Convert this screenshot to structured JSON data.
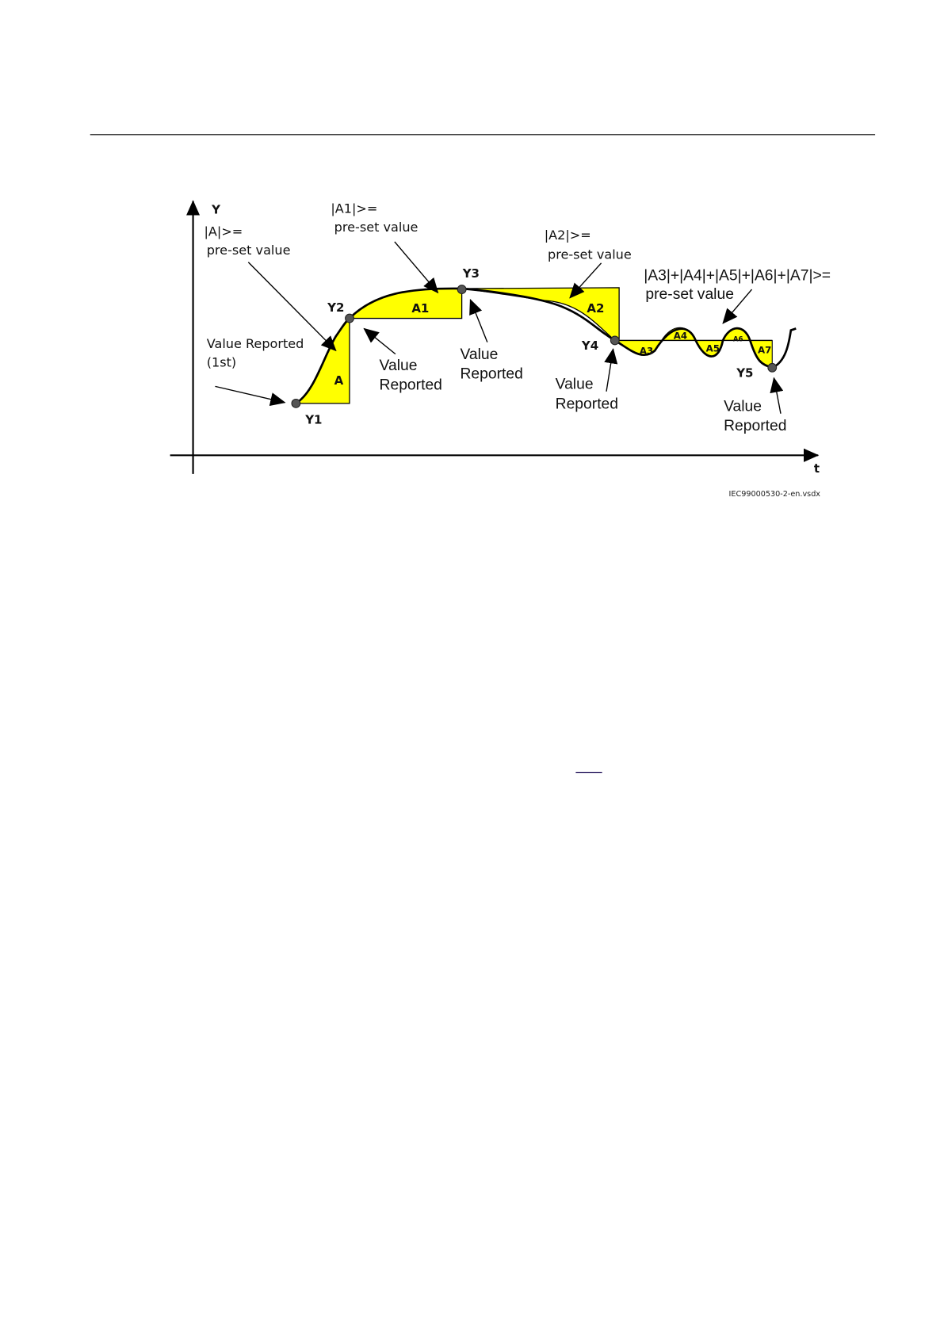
{
  "figure": {
    "axis_y_label": "Y",
    "axis_x_label": "t",
    "points": [
      "Y1",
      "Y2",
      "Y3",
      "Y4",
      "Y5"
    ],
    "areas": [
      "A",
      "A1",
      "A2",
      "A3",
      "A4",
      "A5",
      "A6",
      "A7"
    ],
    "conditions": {
      "a": "|A|>=",
      "a1": "|A1|>=",
      "a2": "|A2|>=",
      "a3_a7": "|A3|+|A4|+|A5|+|A6|+|A7|>=",
      "preset": "pre-set value"
    },
    "annotations": {
      "first_report": "Value Reported",
      "first_report_sub": "(1st)",
      "value": "Value",
      "reported": "Reported"
    },
    "file_caption": "IEC99000530-2-en.vsdx",
    "fill_color": "#ffff00"
  }
}
